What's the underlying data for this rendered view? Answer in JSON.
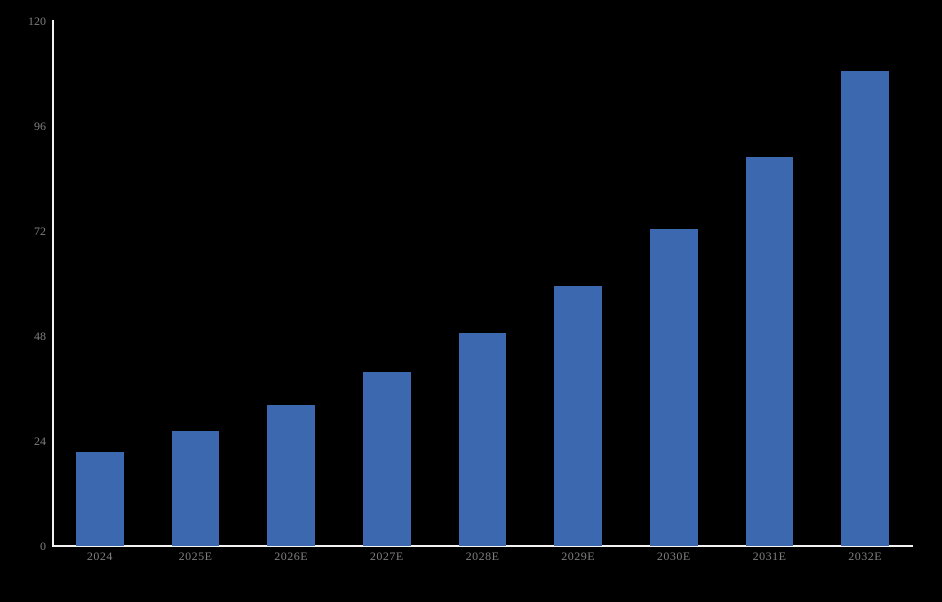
{
  "chart_data": {
    "type": "bar",
    "title": "",
    "xlabel": "",
    "ylabel": "",
    "categories": [
      "2024",
      "2025E",
      "2026E",
      "2027E",
      "2028E",
      "2029E",
      "2030E",
      "2031E",
      "2032E"
    ],
    "values": [
      21.5,
      26.4,
      32.3,
      39.7,
      48.6,
      59.4,
      72.4,
      89.0,
      108.5
    ],
    "ylim": [
      0,
      120
    ],
    "yticks": [
      0,
      24,
      48,
      72,
      96,
      120
    ],
    "grid": false,
    "legend": "none",
    "colors": {
      "background": "#000000",
      "bar": "#3C68B0",
      "axis_line": "#F2F2F2",
      "tick_label": "#7F7F7F"
    }
  }
}
